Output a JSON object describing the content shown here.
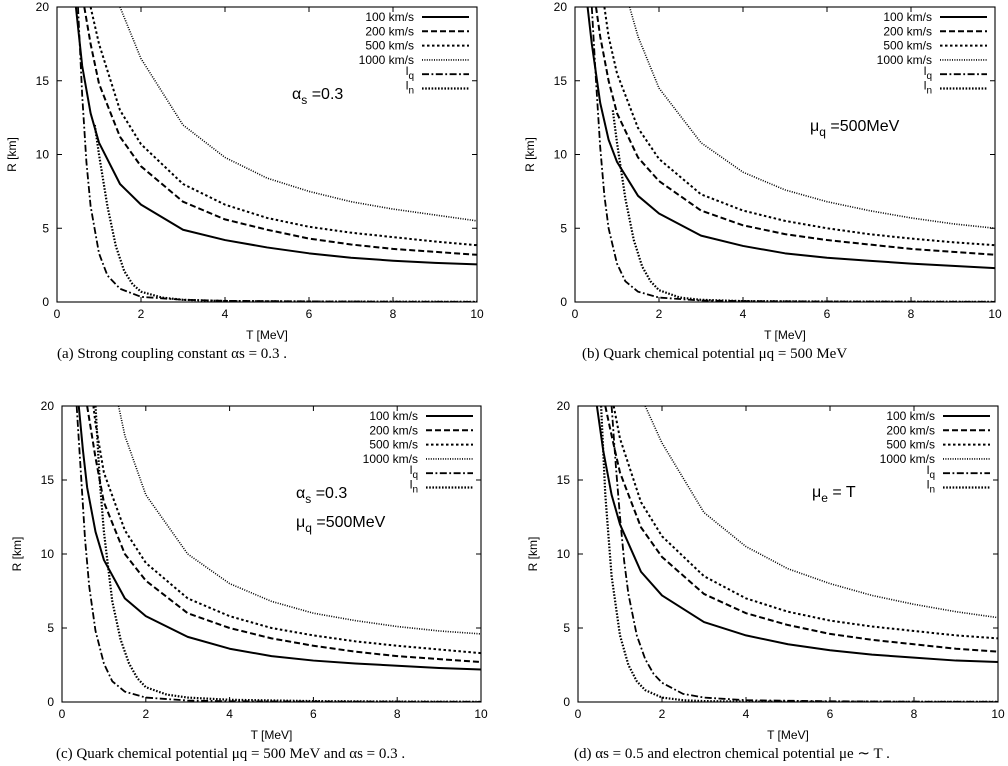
{
  "chart_data": [
    {
      "type": "line",
      "panel_label": "(a)",
      "caption": "(a) Strong coupling constant αs = 0.3 .",
      "xlabel": "T [MeV]",
      "ylabel": "R [km]",
      "xlim": [
        0,
        10
      ],
      "ylim": [
        0,
        20
      ],
      "xticks": [
        0,
        2,
        4,
        6,
        8,
        10
      ],
      "yticks": [
        0,
        5,
        10,
        15,
        20
      ],
      "legend_position": "top-right",
      "grid": false,
      "annotations": [
        {
          "base": "α",
          "sub": "s",
          "rest": " =0.3"
        }
      ],
      "series": [
        {
          "name": "100 km/s",
          "style": "solid",
          "x": [
            0.45,
            0.6,
            0.8,
            1.0,
            1.5,
            2,
            3,
            4,
            5,
            6,
            7,
            8,
            9,
            10
          ],
          "y": [
            20.0,
            16.0,
            12.8,
            10.8,
            8.0,
            6.6,
            4.9,
            4.2,
            3.7,
            3.3,
            3.0,
            2.8,
            2.65,
            2.55
          ]
        },
        {
          "name": "200 km/s",
          "style": "dashed",
          "x": [
            0.65,
            0.8,
            1.0,
            1.5,
            2,
            3,
            4,
            5,
            6,
            7,
            8,
            9,
            10
          ],
          "y": [
            20.0,
            17.5,
            14.8,
            11.2,
            9.2,
            6.8,
            5.6,
            4.9,
            4.3,
            3.9,
            3.6,
            3.4,
            3.2
          ]
        },
        {
          "name": "500 km/s",
          "style": "dotted",
          "x": [
            0.8,
            1.0,
            1.5,
            2,
            3,
            4,
            5,
            6,
            7,
            8,
            9,
            10
          ],
          "y": [
            20.0,
            17.5,
            13.0,
            10.7,
            8.0,
            6.6,
            5.7,
            5.1,
            4.7,
            4.4,
            4.1,
            3.85
          ]
        },
        {
          "name": "1000 km/s",
          "style": "fine-dotted",
          "x": [
            1.5,
            2,
            3,
            4,
            5,
            6,
            7,
            8,
            9,
            10
          ],
          "y": [
            20.0,
            16.5,
            12.0,
            9.8,
            8.4,
            7.5,
            6.8,
            6.3,
            5.9,
            5.5
          ]
        },
        {
          "name": "lq",
          "style": "dash-dot",
          "x": [
            0.5,
            0.6,
            0.7,
            0.8,
            1.0,
            1.2,
            1.5,
            2,
            3,
            4,
            6,
            8,
            10
          ],
          "y": [
            20.0,
            14.0,
            9.5,
            6.5,
            3.3,
            1.8,
            0.9,
            0.35,
            0.15,
            0.08,
            0.04,
            0.02,
            0.01
          ]
        },
        {
          "name": "ln",
          "style": "dense-dotted",
          "x": [
            0.9,
            1.0,
            1.2,
            1.4,
            1.6,
            1.8,
            2.0,
            2.5,
            3,
            4,
            6,
            8,
            10
          ],
          "y": [
            12.0,
            10.0,
            6.5,
            3.8,
            2.1,
            1.2,
            0.7,
            0.3,
            0.15,
            0.06,
            0.03,
            0.02,
            0.01
          ]
        }
      ]
    },
    {
      "type": "line",
      "panel_label": "(b)",
      "caption": "(b) Quark chemical potential μq = 500 MeV",
      "xlabel": "T [MeV]",
      "ylabel": "R [km]",
      "xlim": [
        0,
        10
      ],
      "ylim": [
        0,
        20
      ],
      "xticks": [
        0,
        2,
        4,
        6,
        8,
        10
      ],
      "yticks": [
        0,
        5,
        10,
        15,
        20
      ],
      "legend_position": "top-right",
      "grid": false,
      "annotations": [
        {
          "base": "μ",
          "sub": "q",
          "rest": " =500MeV"
        }
      ],
      "series": [
        {
          "name": "100 km/s",
          "style": "solid",
          "x": [
            0.3,
            0.4,
            0.6,
            0.8,
            1.0,
            1.5,
            2,
            3,
            4,
            5,
            6,
            7,
            8,
            9,
            10
          ],
          "y": [
            20.0,
            17.5,
            13.5,
            11.0,
            9.5,
            7.2,
            6.0,
            4.5,
            3.8,
            3.3,
            3.0,
            2.8,
            2.6,
            2.45,
            2.3
          ]
        },
        {
          "name": "200 km/s",
          "style": "dashed",
          "x": [
            0.5,
            0.6,
            0.8,
            1.0,
            1.5,
            2,
            3,
            4,
            5,
            6,
            7,
            8,
            9,
            10
          ],
          "y": [
            20.0,
            18.0,
            15.0,
            12.8,
            9.8,
            8.2,
            6.2,
            5.2,
            4.6,
            4.2,
            3.9,
            3.6,
            3.4,
            3.2
          ]
        },
        {
          "name": "500 km/s",
          "style": "dotted",
          "x": [
            0.7,
            0.8,
            1.0,
            1.5,
            2,
            3,
            4,
            5,
            6,
            7,
            8,
            9,
            10
          ],
          "y": [
            20.0,
            18.0,
            15.5,
            11.8,
            9.7,
            7.3,
            6.2,
            5.5,
            5.0,
            4.6,
            4.3,
            4.05,
            3.85
          ]
        },
        {
          "name": "1000 km/s",
          "style": "fine-dotted",
          "x": [
            1.3,
            1.5,
            2,
            3,
            4,
            5,
            6,
            7,
            8,
            9,
            10
          ],
          "y": [
            20.0,
            18.0,
            14.5,
            10.8,
            8.8,
            7.6,
            6.8,
            6.2,
            5.7,
            5.3,
            5.0
          ]
        },
        {
          "name": "lq",
          "style": "dash-dot",
          "x": [
            0.4,
            0.5,
            0.6,
            0.7,
            0.8,
            1.0,
            1.2,
            1.5,
            2,
            3,
            4,
            6,
            8,
            10
          ],
          "y": [
            20.0,
            15.0,
            10.5,
            7.2,
            5.0,
            2.6,
            1.4,
            0.7,
            0.3,
            0.1,
            0.06,
            0.03,
            0.02,
            0.01
          ]
        },
        {
          "name": "ln",
          "style": "dense-dotted",
          "x": [
            0.9,
            1.0,
            1.2,
            1.4,
            1.6,
            1.8,
            2.0,
            2.5,
            3,
            4,
            6,
            8,
            10
          ],
          "y": [
            13.0,
            10.8,
            7.0,
            4.2,
            2.4,
            1.4,
            0.8,
            0.3,
            0.15,
            0.06,
            0.03,
            0.02,
            0.01
          ]
        }
      ]
    },
    {
      "type": "line",
      "panel_label": "(c)",
      "caption": "(c) Quark chemical potential μq = 500 MeV and αs = 0.3 .",
      "xlabel": "T [MeV]",
      "ylabel": "R [km]",
      "xlim": [
        0,
        10
      ],
      "ylim": [
        0,
        20
      ],
      "xticks": [
        0,
        2,
        4,
        6,
        8,
        10
      ],
      "yticks": [
        0,
        5,
        10,
        15,
        20
      ],
      "legend_position": "top-right",
      "grid": false,
      "annotations": [
        {
          "base": "α",
          "sub": "s",
          "rest": " =0.3"
        },
        {
          "base": "μ",
          "sub": "q",
          "rest": " =500MeV"
        }
      ],
      "series": [
        {
          "name": "100 km/s",
          "style": "solid",
          "x": [
            0.4,
            0.5,
            0.6,
            0.8,
            1.0,
            1.5,
            2,
            3,
            4,
            5,
            6,
            7,
            8,
            9,
            10
          ],
          "y": [
            20.0,
            17.0,
            14.5,
            11.5,
            9.6,
            7.0,
            5.8,
            4.4,
            3.6,
            3.1,
            2.8,
            2.6,
            2.45,
            2.3,
            2.2
          ]
        },
        {
          "name": "200 km/s",
          "style": "dashed",
          "x": [
            0.6,
            0.8,
            1.0,
            1.5,
            2,
            3,
            4,
            5,
            6,
            7,
            8,
            9,
            10
          ],
          "y": [
            20.0,
            16.5,
            13.5,
            10.0,
            8.2,
            6.0,
            5.0,
            4.3,
            3.8,
            3.4,
            3.1,
            2.9,
            2.7
          ]
        },
        {
          "name": "500 km/s",
          "style": "dotted",
          "x": [
            0.75,
            0.8,
            1.0,
            1.5,
            2,
            3,
            4,
            5,
            6,
            7,
            8,
            9,
            10
          ],
          "y": [
            20.0,
            18.8,
            15.5,
            11.6,
            9.4,
            7.0,
            5.8,
            5.0,
            4.5,
            4.1,
            3.8,
            3.55,
            3.3
          ]
        },
        {
          "name": "1000 km/s",
          "style": "fine-dotted",
          "x": [
            1.35,
            1.5,
            2,
            3,
            4,
            5,
            6,
            7,
            8,
            9,
            10
          ],
          "y": [
            20.0,
            18.0,
            14.0,
            10.0,
            8.0,
            6.8,
            6.0,
            5.5,
            5.1,
            4.8,
            4.6
          ]
        },
        {
          "name": "lq",
          "style": "dash-dot",
          "x": [
            0.35,
            0.45,
            0.55,
            0.65,
            0.8,
            1.0,
            1.2,
            1.5,
            2,
            3,
            4,
            6,
            8,
            10
          ],
          "y": [
            20.0,
            15.5,
            11.0,
            7.8,
            4.8,
            2.6,
            1.4,
            0.7,
            0.3,
            0.1,
            0.05,
            0.03,
            0.02,
            0.01
          ]
        },
        {
          "name": "ln",
          "style": "dense-dotted",
          "x": [
            0.8,
            0.9,
            1.0,
            1.2,
            1.4,
            1.6,
            1.8,
            2.0,
            2.5,
            3,
            4,
            6,
            8,
            10
          ],
          "y": [
            20.0,
            15.0,
            11.5,
            6.8,
            4.2,
            2.6,
            1.6,
            1.0,
            0.5,
            0.3,
            0.15,
            0.06,
            0.03,
            0.01
          ]
        }
      ]
    },
    {
      "type": "line",
      "panel_label": "(d)",
      "caption": "(d) αs = 0.5 and electron chemical potential μe ∼ T .",
      "xlabel": "T [MeV]",
      "ylabel": "R [km]",
      "xlim": [
        0,
        10
      ],
      "ylim": [
        0,
        20
      ],
      "xticks": [
        0,
        2,
        4,
        6,
        8,
        10
      ],
      "yticks": [
        0,
        5,
        10,
        15,
        20
      ],
      "legend_position": "top-right",
      "grid": false,
      "annotations": [
        {
          "base": "μ",
          "sub": "e",
          "rest": " = T"
        }
      ],
      "series": [
        {
          "name": "100 km/s",
          "style": "solid",
          "x": [
            0.45,
            0.6,
            0.8,
            1.0,
            1.5,
            2,
            3,
            4,
            5,
            6,
            7,
            8,
            9,
            10
          ],
          "y": [
            20.0,
            17.0,
            14.0,
            12.0,
            8.8,
            7.2,
            5.4,
            4.5,
            3.9,
            3.5,
            3.2,
            3.0,
            2.8,
            2.7
          ]
        },
        {
          "name": "200 km/s",
          "style": "dashed",
          "x": [
            0.65,
            0.8,
            1.0,
            1.5,
            2,
            3,
            4,
            5,
            6,
            7,
            8,
            9,
            10
          ],
          "y": [
            20.0,
            18.0,
            15.5,
            11.8,
            9.8,
            7.3,
            6.0,
            5.2,
            4.6,
            4.2,
            3.9,
            3.6,
            3.4
          ]
        },
        {
          "name": "500 km/s",
          "style": "dotted",
          "x": [
            0.85,
            1.0,
            1.5,
            2,
            3,
            4,
            5,
            6,
            7,
            8,
            9,
            10
          ],
          "y": [
            20.0,
            17.8,
            13.5,
            11.2,
            8.5,
            7.0,
            6.1,
            5.5,
            5.1,
            4.8,
            4.5,
            4.3
          ]
        },
        {
          "name": "1000 km/s",
          "style": "fine-dotted",
          "x": [
            1.6,
            2,
            3,
            4,
            5,
            6,
            7,
            8,
            9,
            10
          ],
          "y": [
            20.0,
            17.5,
            12.8,
            10.5,
            9.0,
            8.0,
            7.2,
            6.6,
            6.1,
            5.7
          ]
        },
        {
          "name": "lq",
          "style": "dash-dot",
          "x": [
            0.8,
            0.9,
            1.0,
            1.1,
            1.2,
            1.4,
            1.6,
            1.8,
            2.0,
            2.5,
            3,
            4,
            6,
            8,
            10
          ],
          "y": [
            20.0,
            16.0,
            12.5,
            9.5,
            7.3,
            4.5,
            2.9,
            1.9,
            1.3,
            0.55,
            0.3,
            0.12,
            0.05,
            0.02,
            0.01
          ]
        },
        {
          "name": "ln",
          "style": "dense-dotted",
          "x": [
            0.55,
            0.65,
            0.8,
            1.0,
            1.2,
            1.4,
            1.6,
            2.0,
            2.5,
            3,
            4,
            6,
            8,
            10
          ],
          "y": [
            20.0,
            14.0,
            8.5,
            4.5,
            2.5,
            1.4,
            0.8,
            0.3,
            0.12,
            0.06,
            0.03,
            0.02,
            0.01,
            0.01
          ]
        }
      ]
    }
  ]
}
